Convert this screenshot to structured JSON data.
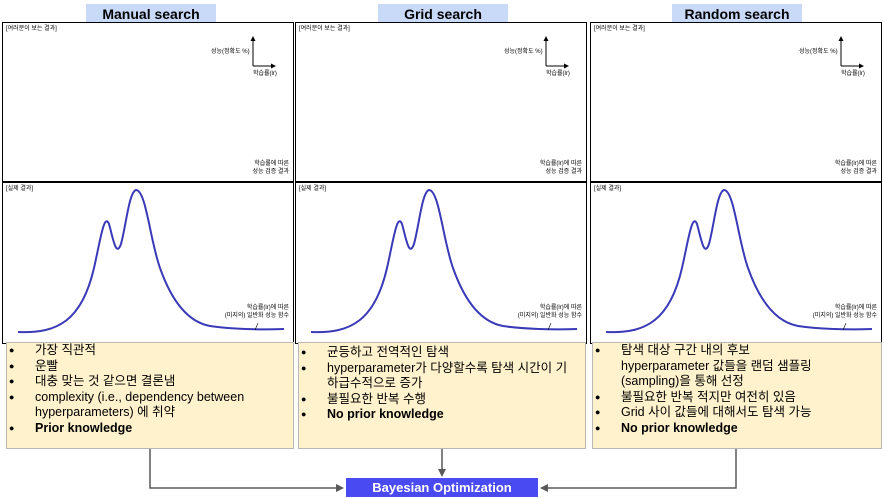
{
  "columns": [
    {
      "title": "Manual search",
      "top_label": "[여러분이 보는 결과]",
      "axis_y_label": "성능(정확도 %)",
      "axis_x_label": "학습률(lr)",
      "top_caption_1": "학습률에 따른",
      "top_caption_2": "성능 검증 결과",
      "bottom_label": "[실제 결과]",
      "bottom_caption_1": "학습률(lr)에 따른",
      "bottom_caption_2": "(미지의) 일반화 성능 함수",
      "notes": [
        {
          "text": "가장 직관적",
          "bold": false
        },
        {
          "text": "운빨",
          "bold": false
        },
        {
          "text": "대충 맞는 것 같으면 결론냄",
          "bold": false
        },
        {
          "text": "complexity (i.e., dependency between hyperparameters) 에 취약",
          "bold": false
        },
        {
          "text": "Prior knowledge",
          "bold": true
        }
      ]
    },
    {
      "title": "Grid search",
      "top_label": "[여러분이 보는 결과]",
      "axis_y_label": "성능(정확도 %)",
      "axis_x_label": "학습률(lr)",
      "top_caption_1": "학습률(lr)에 따른",
      "top_caption_2": "성능 검증 결과",
      "bottom_label": "[실제 결과]",
      "bottom_caption_1": "학습률(lr)에 따른",
      "bottom_caption_2": "(미지의) 일반화 성능 함수",
      "notes": [
        {
          "text": "균등하고 전역적인 탐색",
          "bold": false
        },
        {
          "text": "hyperparameter가 다양할수록 탐색 시간이 기하급수적으로 증가",
          "bold": false
        },
        {
          "text": "불필요한 반복 수행",
          "bold": false
        },
        {
          "text": "No prior knowledge",
          "bold": true
        }
      ]
    },
    {
      "title": "Random search",
      "top_label": "[여러분이 보는 결과]",
      "axis_y_label": "성능(정확도 %)",
      "axis_x_label": "학습률(lr)",
      "top_caption_1": "학습률(lr)에 따른",
      "top_caption_2": "성능 검증 결과",
      "bottom_label": "[실제 결과]",
      "bottom_caption_1": "학습률(lr)에 따른",
      "bottom_caption_2": "(미지의) 일반화 성능 함수",
      "notes": [
        {
          "text": "탐색 대상 구간 내의 후보 hyperparameter 값들을 랜덤 샘플링(sampling)을 통해 선정",
          "bold": false
        },
        {
          "text": "불필요한 반복 적지만 여전히 있음",
          "bold": false
        },
        {
          "text": "Grid 사이 값들에 대해서도 탐색 가능",
          "bold": false
        },
        {
          "text": "No prior knowledge",
          "bold": true
        }
      ]
    }
  ],
  "footer": {
    "title": "Bayesian Optimization"
  },
  "colors": {
    "title_bg": "#c9daf8",
    "notes_bg": "#fff2cc",
    "curve": "#3a3ab8",
    "bayes_bg": "#4a4af2"
  }
}
